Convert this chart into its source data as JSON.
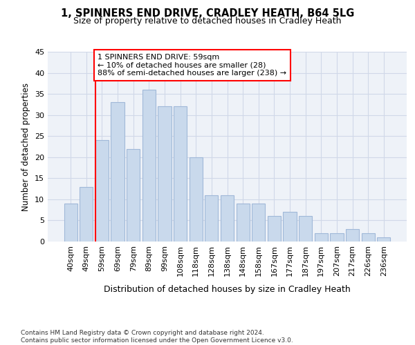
{
  "title": "1, SPINNERS END DRIVE, CRADLEY HEATH, B64 5LG",
  "subtitle": "Size of property relative to detached houses in Cradley Heath",
  "xlabel": "Distribution of detached houses by size in Cradley Heath",
  "ylabel": "Number of detached properties",
  "categories": [
    "40sqm",
    "49sqm",
    "59sqm",
    "69sqm",
    "79sqm",
    "89sqm",
    "99sqm",
    "108sqm",
    "118sqm",
    "128sqm",
    "138sqm",
    "148sqm",
    "158sqm",
    "167sqm",
    "177sqm",
    "187sqm",
    "197sqm",
    "207sqm",
    "217sqm",
    "226sqm",
    "236sqm"
  ],
  "values": [
    9,
    13,
    24,
    33,
    22,
    36,
    32,
    32,
    20,
    11,
    11,
    9,
    9,
    6,
    7,
    6,
    2,
    2,
    3,
    2,
    1
  ],
  "bar_color": "#c9d9ec",
  "bar_edge_color": "#a0b8d8",
  "grid_color": "#d0d8e8",
  "background_color": "#eef2f8",
  "annotation_box_text": "1 SPINNERS END DRIVE: 59sqm\n← 10% of detached houses are smaller (28)\n88% of semi-detached houses are larger (238) →",
  "vline_x_index": 2,
  "ylim": [
    0,
    45
  ],
  "yticks": [
    0,
    5,
    10,
    15,
    20,
    25,
    30,
    35,
    40,
    45
  ],
  "footer_line1": "Contains HM Land Registry data © Crown copyright and database right 2024.",
  "footer_line2": "Contains public sector information licensed under the Open Government Licence v3.0."
}
